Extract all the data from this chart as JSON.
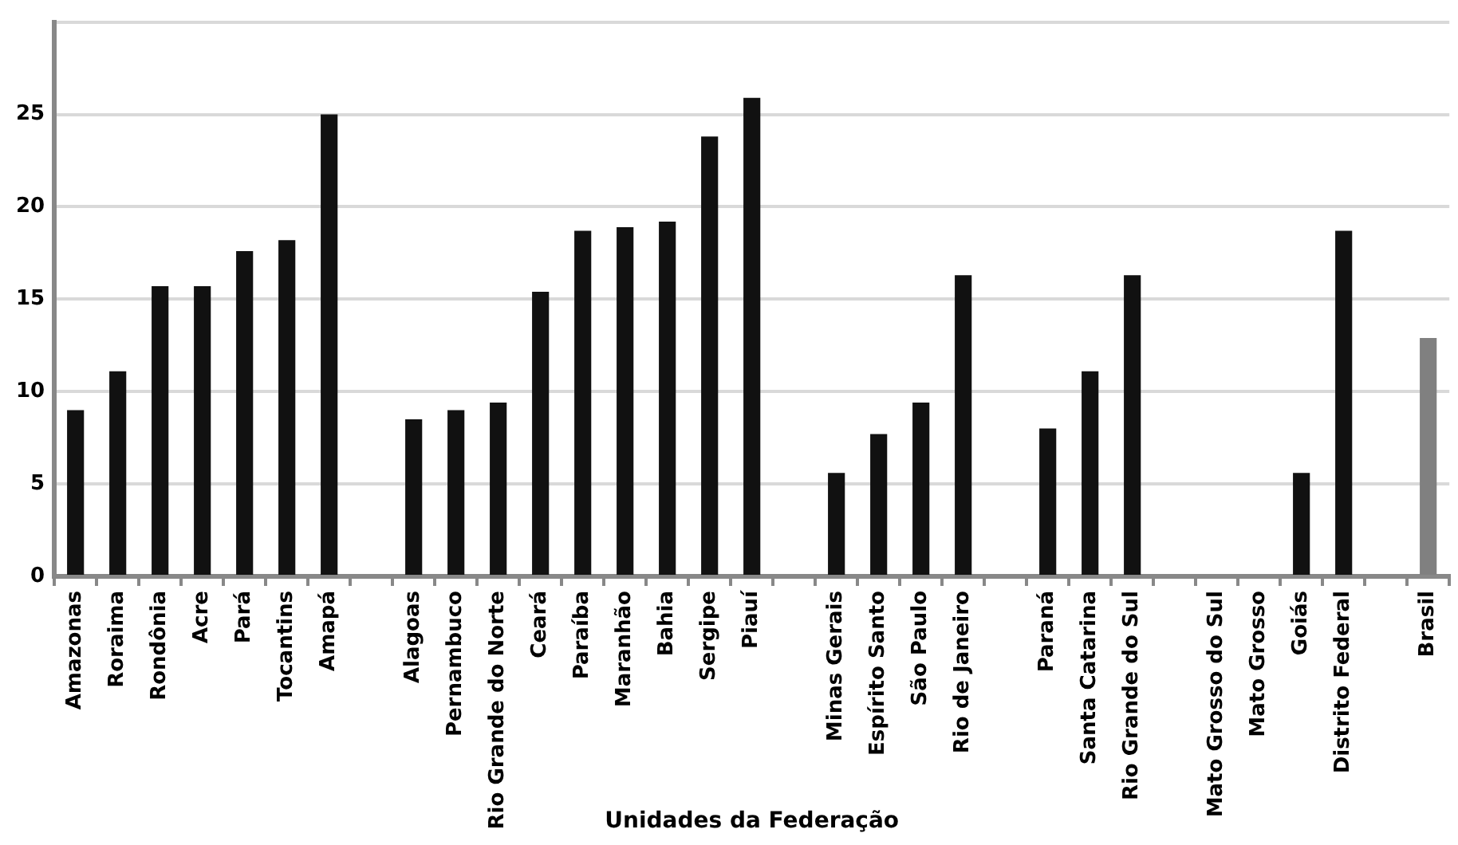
{
  "chart_data": {
    "type": "bar",
    "xlabel": "Unidades da Federação",
    "categories": [
      "Amazonas",
      "Roraima",
      "Rondônia",
      "Acre",
      "Pará",
      "Tocantins",
      "Amapá",
      null,
      "Alagoas",
      "Pernambuco",
      "Rio Grande do Norte",
      "Ceará",
      "Paraíba",
      "Maranhão",
      "Bahia",
      "Sergipe",
      "Piauí",
      null,
      "Minas Gerais",
      "Espírito Santo",
      "São Paulo",
      "Rio de Janeiro",
      null,
      "Paraná",
      "Santa Catarina",
      "Rio Grande do Sul",
      null,
      "Mato Grosso do Sul",
      "Mato Grosso",
      "Goiás",
      "Distrito Federal",
      null,
      "Brasil"
    ],
    "values": [
      9.0,
      11.1,
      15.7,
      15.7,
      17.6,
      18.2,
      25.0,
      null,
      8.5,
      9.0,
      9.4,
      15.4,
      18.7,
      18.9,
      19.2,
      23.8,
      25.9,
      null,
      5.6,
      7.7,
      9.4,
      16.3,
      null,
      8.0,
      11.1,
      16.3,
      null,
      null,
      null,
      5.6,
      18.7,
      null,
      12.9
    ],
    "colors": [
      "#111111",
      "#111111",
      "#111111",
      "#111111",
      "#111111",
      "#111111",
      "#111111",
      "#111111",
      "#111111",
      "#111111",
      "#111111",
      "#111111",
      "#111111",
      "#111111",
      "#111111",
      "#111111",
      "#111111",
      "#111111",
      "#111111",
      "#111111",
      "#111111",
      "#111111",
      "#111111",
      "#111111",
      "#111111",
      "#111111",
      "#111111",
      "#111111",
      "#111111",
      "#111111",
      "#111111",
      "#111111",
      "#808080"
    ],
    "ylim": [
      0,
      30
    ],
    "yticks": [
      0,
      5,
      10,
      15,
      20,
      25,
      {
        "value": 30,
        "label": null
      }
    ],
    "grid": "y",
    "legend": false
  }
}
